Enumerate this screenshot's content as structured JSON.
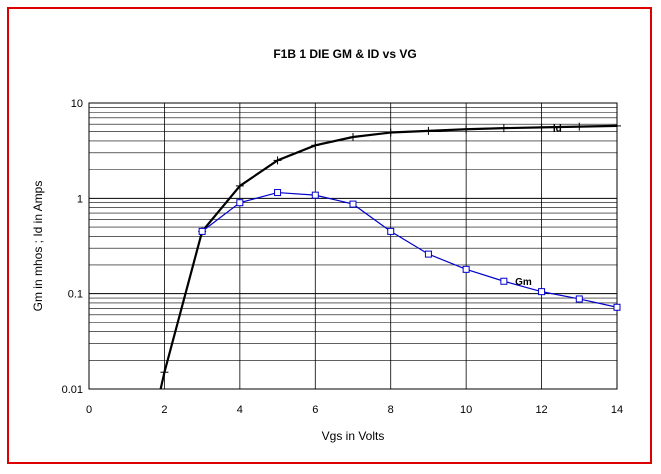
{
  "chart_data": {
    "type": "line",
    "title": "F1B 1 DIE  GM & ID  vs  VG",
    "xlabel": "Vgs in Volts",
    "ylabel": "Gm in  mhos ;  Id in Amps",
    "xlim": [
      0,
      14
    ],
    "ylim": [
      0.01,
      10
    ],
    "yscale": "log",
    "x_ticks": [
      "0",
      "2",
      "4",
      "6",
      "8",
      "10",
      "12",
      "14"
    ],
    "y_ticks": [
      "0.01",
      "0.1",
      "1",
      "10"
    ],
    "grid": true,
    "legend": "none",
    "series": [
      {
        "name": "Id",
        "color": "#000000",
        "marker": "plus",
        "x": [
          1.9,
          2,
          3,
          4,
          5,
          6,
          7,
          8,
          9,
          10,
          11,
          12,
          13,
          14
        ],
        "y": [
          0.01,
          0.015,
          0.45,
          1.35,
          2.5,
          3.6,
          4.4,
          4.9,
          5.1,
          5.3,
          5.45,
          5.55,
          5.65,
          5.75
        ]
      },
      {
        "name": "Gm",
        "color": "#0000cc",
        "marker": "square",
        "x": [
          3,
          4,
          5,
          6,
          7,
          8,
          9,
          10,
          11,
          12,
          13,
          14
        ],
        "y": [
          0.45,
          0.9,
          1.15,
          1.08,
          0.87,
          0.45,
          0.26,
          0.18,
          0.135,
          0.105,
          0.088,
          0.072
        ]
      }
    ],
    "frame_color": "#dd0000"
  }
}
